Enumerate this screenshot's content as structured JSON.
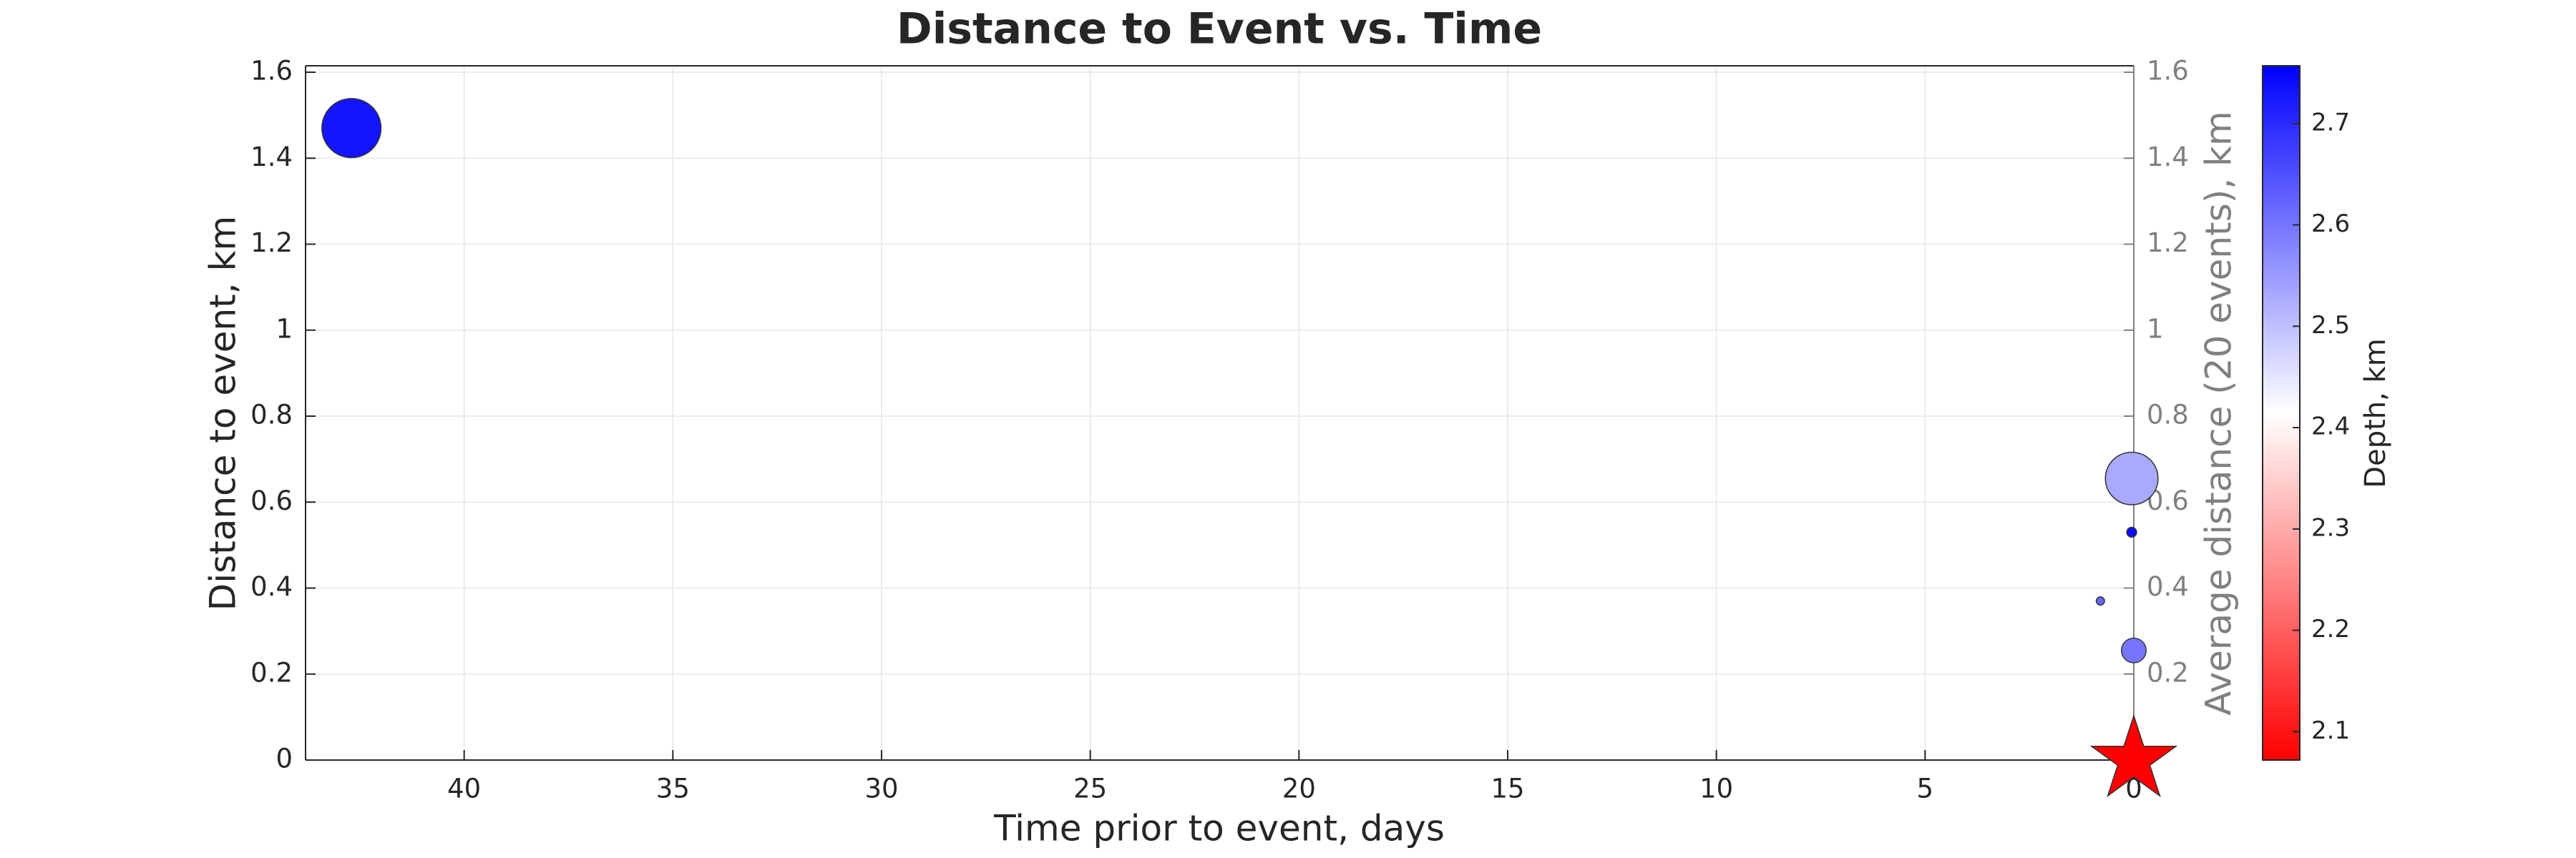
{
  "chart_data": {
    "type": "scatter",
    "title": "Distance to Event vs. Time",
    "xlabel": "Time prior to event, days",
    "ylabel": "Distance to event, km",
    "y2label": "Average distance (20 events), km",
    "x": [
      42.7,
      0.05,
      0.05,
      0.8,
      0.0
    ],
    "values": [
      1.47,
      0.655,
      0.53,
      0.37,
      0.255
    ],
    "sizes": [
      18,
      16,
      3,
      2.5,
      7.5
    ],
    "depth": [
      2.73,
      2.53,
      2.74,
      2.62,
      2.6
    ],
    "xlim": [
      43.8,
      0
    ],
    "xticks": [
      40,
      35,
      30,
      25,
      20,
      15,
      10,
      5,
      0
    ],
    "ylim": [
      0,
      1.615
    ],
    "yticks": [
      0,
      0.2,
      0.4,
      0.6,
      0.8,
      1,
      1.2,
      1.4,
      1.6
    ],
    "y2lim": [
      0,
      1.615
    ],
    "y2ticks": [
      0.2,
      0.4,
      0.6,
      0.8,
      1,
      1.2,
      1.4,
      1.6
    ],
    "grid": true,
    "event": {
      "x": 0,
      "y": 0,
      "size": 27,
      "color": "#ff0000"
    },
    "colorbar": {
      "label": "Depth, km",
      "lim": [
        2.072,
        2.757
      ],
      "ticks": [
        2.1,
        2.2,
        2.3,
        2.4,
        2.5,
        2.6,
        2.7
      ],
      "colormap": [
        "#ff0000",
        "#ffffff",
        "#0000ff"
      ]
    }
  }
}
